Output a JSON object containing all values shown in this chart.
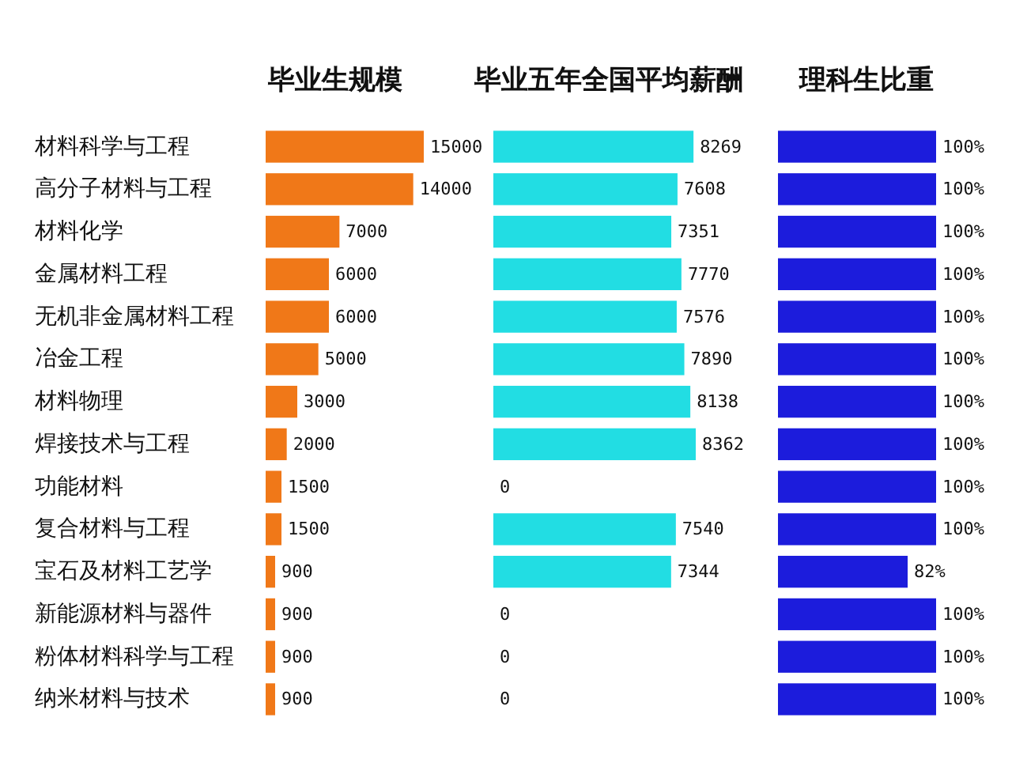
{
  "chart_data": [
    {
      "type": "bar",
      "orientation": "horizontal",
      "title": "毕业生规模",
      "categories": [
        "材料科学与工程",
        "高分子材料与工程",
        "材料化学",
        "金属材料工程",
        "无机非金属材料工程",
        "冶金工程",
        "材料物理",
        "焊接技术与工程",
        "功能材料",
        "复合材料与工程",
        "宝石及材料工艺学",
        "新能源材料与器件",
        "粉体材料科学与工程",
        "纳米材料与技术"
      ],
      "values": [
        15000,
        14000,
        7000,
        6000,
        6000,
        5000,
        3000,
        2000,
        1500,
        1500,
        900,
        900,
        900,
        900
      ],
      "color": "#f07818",
      "data_labels": true,
      "tick_labels": "y"
    },
    {
      "type": "bar",
      "orientation": "horizontal",
      "title": "毕业五年全国平均薪酬",
      "values": [
        8269,
        7608,
        7351,
        7770,
        7576,
        7890,
        8138,
        8362,
        0,
        7540,
        7344,
        0,
        0,
        0
      ],
      "color": "#22dde3",
      "data_labels": true,
      "tick_labels": false
    },
    {
      "type": "bar",
      "orientation": "horizontal",
      "title": "理科生比重",
      "values": [
        100,
        100,
        100,
        100,
        100,
        100,
        100,
        100,
        100,
        100,
        82,
        100,
        100,
        100
      ],
      "color": "#1c1cdc",
      "value_labels": [
        "100%",
        "100%",
        "100%",
        "100%",
        "100%",
        "100%",
        "100%",
        "100%",
        "100%",
        "100%",
        "82%",
        "100%",
        "100%",
        "100%"
      ],
      "tick_labels": false
    }
  ]
}
